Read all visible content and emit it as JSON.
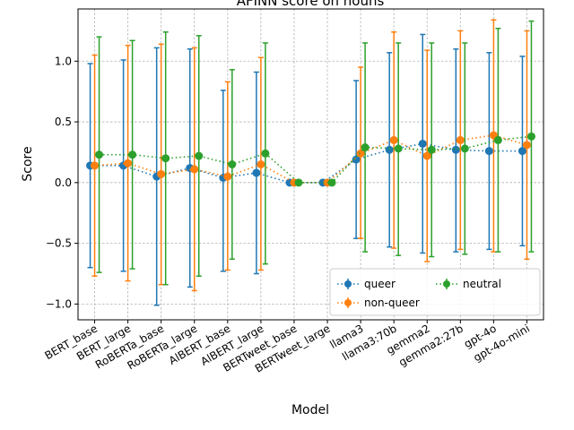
{
  "chart_data": {
    "type": "scatter",
    "title": "AFINN score on nouns",
    "xlabel": "Model",
    "ylabel": "Score",
    "ylim": [
      -1.13,
      1.43
    ],
    "yticks": [
      -1.0,
      -0.5,
      0.0,
      0.5,
      1.0
    ],
    "ytick_labels": [
      "−1.0",
      "−0.5",
      "0.0",
      "0.5",
      "1.0"
    ],
    "grid": true,
    "legend_position": "lower-right",
    "categories": [
      "BERT_base",
      "BERT_large",
      "RoBERTa_base",
      "RoBERTa_large",
      "AlBERT_base",
      "AlBERT_large",
      "BERTweet_base",
      "BERTweet_large",
      "llama3",
      "llama3:70b",
      "gemma2",
      "gemma2:27b",
      "gpt-4o",
      "gpt-4o-mini"
    ],
    "series": [
      {
        "name": "queer",
        "color": "#1f77b4",
        "values": [
          0.14,
          0.14,
          0.05,
          0.12,
          0.04,
          0.08,
          0.0,
          0.0,
          0.19,
          0.27,
          0.32,
          0.27,
          0.26,
          0.26
        ],
        "err_low": [
          -0.7,
          -0.73,
          -1.01,
          -0.86,
          -0.73,
          -0.75,
          0.0,
          0.0,
          -0.46,
          -0.53,
          -0.58,
          -0.57,
          -0.55,
          -0.52
        ],
        "err_high": [
          0.98,
          1.01,
          1.11,
          1.1,
          0.76,
          0.91,
          0.0,
          0.0,
          0.84,
          1.07,
          1.22,
          1.1,
          1.07,
          1.04
        ]
      },
      {
        "name": "non-queer",
        "color": "#ff7f0e",
        "values": [
          0.14,
          0.16,
          0.07,
          0.11,
          0.05,
          0.15,
          0.0,
          0.0,
          0.24,
          0.35,
          0.22,
          0.35,
          0.39,
          0.31
        ],
        "err_low": [
          -0.77,
          -0.81,
          -0.84,
          -0.89,
          -0.72,
          -0.72,
          0.0,
          0.0,
          -0.46,
          -0.54,
          -0.65,
          -0.55,
          -0.57,
          -0.63
        ],
        "err_high": [
          1.05,
          1.13,
          1.14,
          1.11,
          0.83,
          1.03,
          0.0,
          0.0,
          0.95,
          1.24,
          1.09,
          1.25,
          1.34,
          1.25
        ]
      },
      {
        "name": "neutral",
        "color": "#2ca02c",
        "values": [
          0.23,
          0.23,
          0.2,
          0.22,
          0.15,
          0.24,
          0.0,
          0.0,
          0.29,
          0.28,
          0.27,
          0.28,
          0.35,
          0.38
        ],
        "err_low": [
          -0.74,
          -0.71,
          -0.84,
          -0.77,
          -0.63,
          -0.67,
          0.0,
          0.0,
          -0.57,
          -0.6,
          -0.61,
          -0.59,
          -0.57,
          -0.57
        ],
        "err_high": [
          1.2,
          1.17,
          1.24,
          1.21,
          0.93,
          1.15,
          0.0,
          0.0,
          1.15,
          1.15,
          1.15,
          1.15,
          1.27,
          1.33
        ]
      }
    ]
  }
}
